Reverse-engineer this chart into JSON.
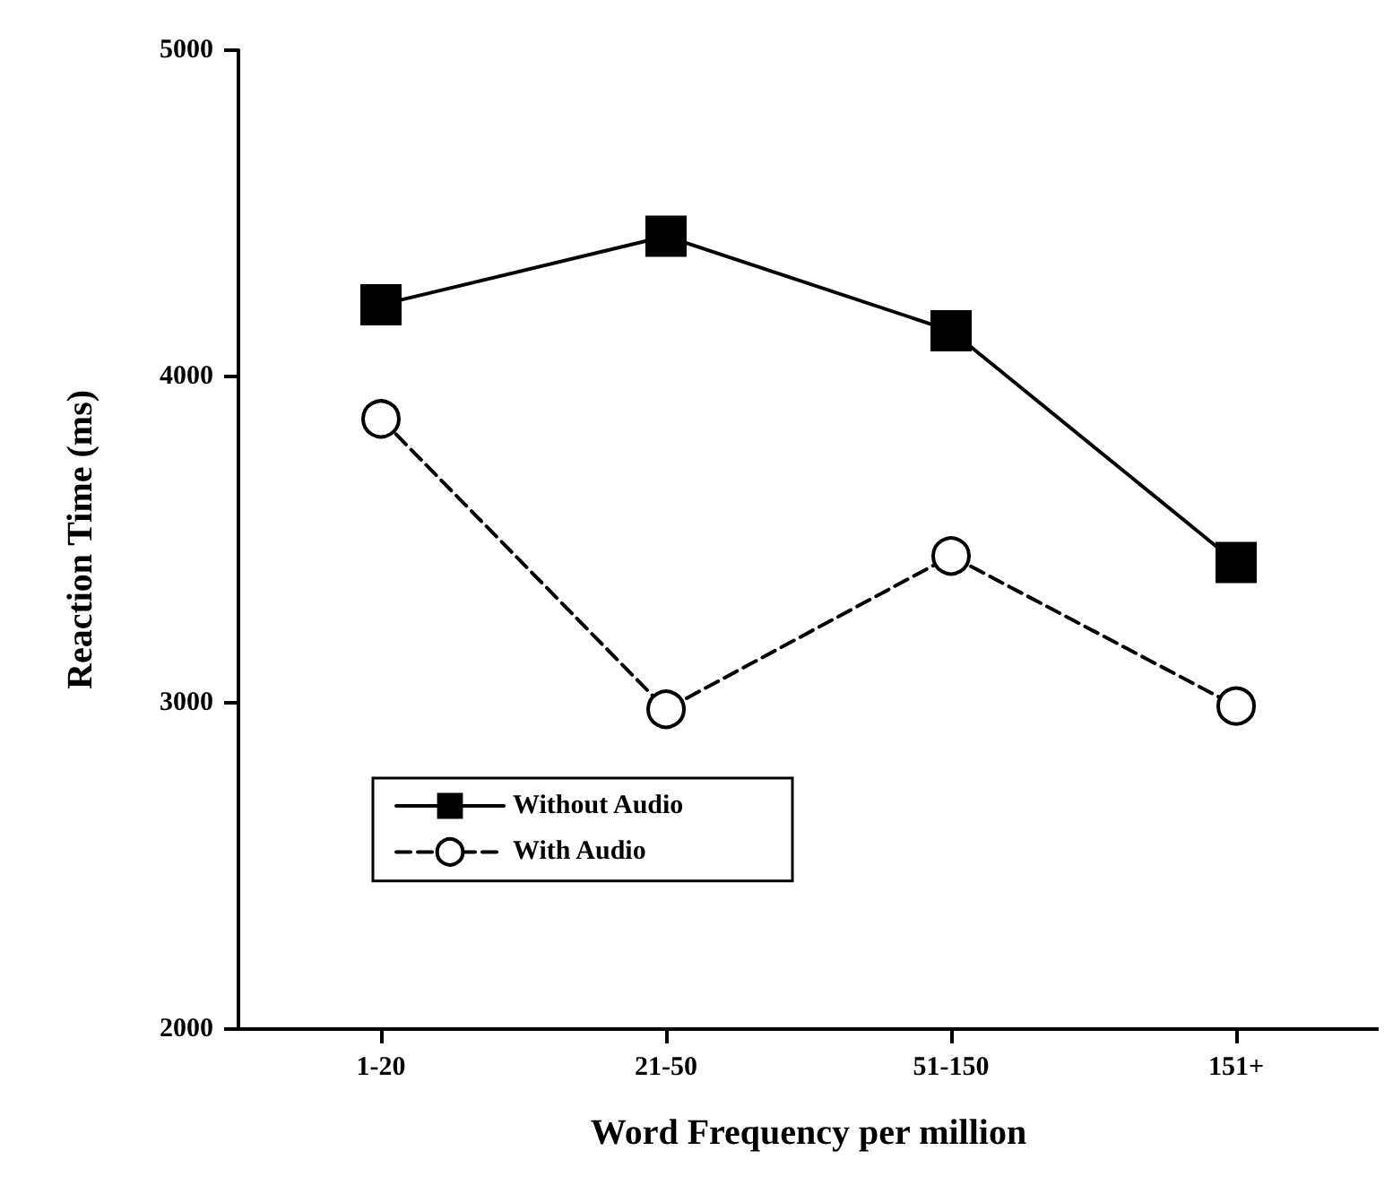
{
  "chart_data": {
    "type": "line",
    "xlabel": "Word Frequency per million",
    "ylabel": "Reaction Time (ms)",
    "categories": [
      "1-20",
      "21-50",
      "51-150",
      "151+"
    ],
    "series": [
      {
        "name": "Without Audio",
        "color": "#000000",
        "values": [
          4220,
          4430,
          4140,
          3430
        ],
        "marker": "square",
        "line_style": "solid"
      },
      {
        "name": "With Audio",
        "color": "#000000",
        "values": [
          3870,
          2980,
          3450,
          2990
        ],
        "marker": "circle",
        "line_style": "dashed"
      }
    ],
    "ylim": [
      2000,
      5000
    ],
    "yticks": [
      2000,
      3000,
      4000,
      5000
    ],
    "grid": false,
    "legend": "bottom left"
  }
}
